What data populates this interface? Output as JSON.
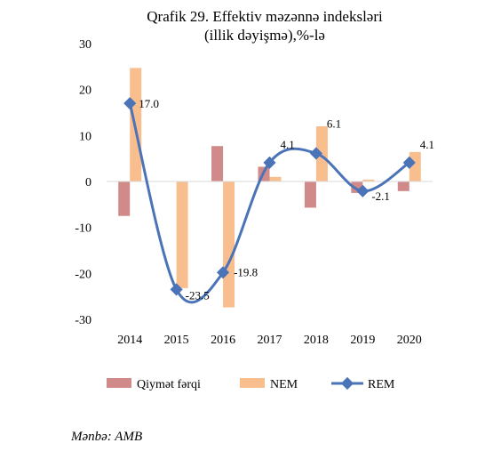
{
  "chart_data": {
    "type": "bar",
    "title": [
      "Qrafik 29. Effektiv məzənnə indeksləri",
      "(illik dəyişmə),%-lə"
    ],
    "categories": [
      "2014",
      "2015",
      "2016",
      "2017",
      "2018",
      "2019",
      "2020"
    ],
    "ylim": [
      -30,
      30
    ],
    "yticks": [
      30,
      20,
      10,
      0,
      -10,
      -20,
      -30
    ],
    "series": [
      {
        "name": "Qiymət fərqi",
        "kind": "bar",
        "color": "#d08a8a",
        "values": [
          -7.5,
          0,
          7.7,
          3.2,
          -5.7,
          -2.5,
          -2.1
        ]
      },
      {
        "name": "NEM",
        "kind": "bar",
        "color": "#f9be8e",
        "values": [
          24.7,
          -23.2,
          -27.4,
          1.0,
          12.0,
          0.4,
          6.4
        ]
      },
      {
        "name": "REM",
        "kind": "line",
        "color": "#4a73b8",
        "values": [
          17.0,
          -23.5,
          -19.8,
          4.1,
          6.1,
          -2.1,
          4.1
        ],
        "labels": [
          "17.0",
          "-23.5",
          "-19.8",
          "4.1",
          "6.1",
          "-2.1",
          "4.1"
        ]
      }
    ],
    "legend": "bottom",
    "grid": false
  },
  "source": "Mənbə: AMB"
}
